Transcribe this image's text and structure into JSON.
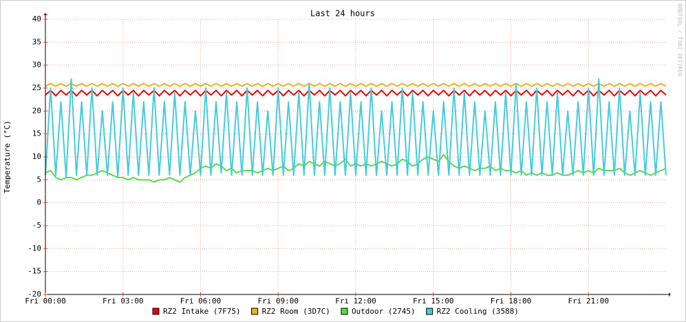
{
  "chart_data": {
    "type": "line",
    "title": "Last 24 hours",
    "y_label": "Temperature (°C)",
    "watermark": "RRDTOOL / TOBI OETIKER",
    "xlim": [
      0,
      24
    ],
    "xticks": [
      {
        "value": 0,
        "label": "Fri 00:00"
      },
      {
        "value": 3,
        "label": "Fri 03:00"
      },
      {
        "value": 6,
        "label": "Fri 06:00"
      },
      {
        "value": 9,
        "label": "Fri 09:00"
      },
      {
        "value": 12,
        "label": "Fri 12:00"
      },
      {
        "value": 15,
        "label": "Fri 15:00"
      },
      {
        "value": 18,
        "label": "Fri 18:00"
      },
      {
        "value": 21,
        "label": "Fri 21:00"
      }
    ],
    "ylim": [
      -20,
      40
    ],
    "yticks": [
      -20,
      -15,
      -10,
      -5,
      0,
      5,
      10,
      15,
      20,
      25,
      30,
      35,
      40
    ],
    "grid": true,
    "legend": "bottom",
    "x": [
      0,
      0.2,
      0.4,
      0.6,
      0.8,
      1,
      1.2,
      1.4,
      1.6,
      1.8,
      2,
      2.2,
      2.4,
      2.6,
      2.8,
      3,
      3.2,
      3.4,
      3.6,
      3.8,
      4,
      4.2,
      4.4,
      4.6,
      4.8,
      5,
      5.2,
      5.4,
      5.6,
      5.8,
      6,
      6.2,
      6.4,
      6.6,
      6.8,
      7,
      7.2,
      7.4,
      7.6,
      7.8,
      8,
      8.2,
      8.4,
      8.6,
      8.8,
      9,
      9.2,
      9.4,
      9.6,
      9.8,
      10,
      10.2,
      10.4,
      10.6,
      10.8,
      11,
      11.2,
      11.4,
      11.6,
      11.8,
      12,
      12.2,
      12.4,
      12.6,
      12.8,
      13,
      13.2,
      13.4,
      13.6,
      13.8,
      14,
      14.2,
      14.4,
      14.6,
      14.8,
      15,
      15.2,
      15.4,
      15.6,
      15.8,
      16,
      16.2,
      16.4,
      16.6,
      16.8,
      17,
      17.2,
      17.4,
      17.6,
      17.8,
      18,
      18.2,
      18.4,
      18.6,
      18.8,
      19,
      19.2,
      19.4,
      19.6,
      19.8,
      20,
      20.2,
      20.4,
      20.6,
      20.8,
      21,
      21.2,
      21.4,
      21.6,
      21.8,
      22,
      22.2,
      22.4,
      22.6,
      22.8,
      23,
      23.2,
      23.4,
      23.6,
      23.8,
      24
    ],
    "series": [
      {
        "name": "RZ2 Intake (7F75)",
        "color": "#ee0000",
        "values": [
          23.5,
          24.5,
          23.3,
          24.5,
          23.5,
          24.5,
          23.3,
          24.5,
          23.5,
          24.5,
          23.3,
          24.5,
          23.5,
          24.5,
          23.3,
          24.5,
          23.5,
          24.5,
          23.3,
          24.5,
          23.5,
          24.5,
          23.3,
          24.5,
          23.5,
          24.5,
          23.3,
          24.5,
          23.5,
          24.5,
          23.3,
          24.5,
          23.5,
          24.5,
          23.3,
          24.5,
          23.5,
          24.5,
          23.3,
          24.5,
          23.5,
          24.5,
          23.3,
          24.5,
          23.5,
          24.5,
          23.3,
          24.5,
          23.5,
          24.5,
          23.3,
          24.5,
          23.5,
          24.5,
          23.3,
          24.5,
          23.5,
          24.5,
          23.3,
          24.5,
          23.5,
          24.5,
          23.3,
          24.5,
          23.5,
          24.5,
          23.3,
          24.5,
          23.5,
          24.5,
          23.3,
          24.5,
          23.5,
          24.5,
          23.3,
          24.5,
          23.5,
          24.5,
          23.3,
          24.5,
          23.5,
          24.5,
          23.3,
          24.5,
          23.5,
          24.5,
          23.3,
          24.5,
          23.5,
          24.5,
          23.3,
          24.5,
          23.5,
          24.5,
          23.3,
          24.5,
          23.5,
          24.5,
          23.3,
          24.5,
          23.5,
          24.5,
          23.3,
          24.5,
          23.5,
          24.5,
          23.3,
          24.5,
          23.5,
          24.5,
          23.3,
          24.5,
          23.5,
          24.5,
          23.3,
          24.5,
          23.5,
          24.5,
          23.3,
          24.5,
          23.5
        ]
      },
      {
        "name": "RZ2 Room (3D7C)",
        "color": "#e8b320",
        "values": [
          25.4,
          26,
          25.4,
          26,
          25.4,
          26,
          25.4,
          26,
          25.4,
          26,
          25.4,
          26,
          25.4,
          26,
          25.4,
          26,
          25.4,
          26,
          25.4,
          26,
          25.4,
          26,
          25.4,
          26,
          25.4,
          26,
          25.4,
          26,
          25.4,
          26,
          25.4,
          26,
          25.4,
          26,
          25.4,
          26,
          25.4,
          26,
          25.4,
          26,
          25.4,
          26,
          25.4,
          26,
          25.4,
          26,
          25.4,
          26,
          25.4,
          26,
          25.4,
          26,
          25.4,
          26,
          25.4,
          26,
          25.4,
          26,
          25.4,
          26,
          25.4,
          26,
          25.4,
          26,
          25.4,
          26,
          25.4,
          26,
          25.4,
          26,
          25.4,
          26,
          25.4,
          26,
          25.4,
          26,
          25.4,
          26,
          25.4,
          26,
          25.4,
          26,
          25.4,
          26,
          25.4,
          26,
          25.4,
          26,
          25.4,
          26,
          25.4,
          26,
          25.4,
          26,
          25.4,
          26,
          25.4,
          26,
          25.4,
          26,
          25.4,
          26,
          25.4,
          26,
          25.4,
          26,
          25.4,
          26,
          25.4,
          26,
          25.4,
          26,
          25.4,
          26,
          25.4,
          26,
          25.4,
          26,
          25.4,
          26,
          25.4
        ]
      },
      {
        "name": "Outdoor (2745)",
        "color": "#55dd44",
        "values": [
          6.5,
          7,
          5.5,
          5,
          5.5,
          5.5,
          5,
          5.5,
          6,
          6,
          6.5,
          7,
          6.5,
          6,
          5.5,
          5.5,
          5,
          5.5,
          5,
          5,
          5,
          4.5,
          5,
          5,
          5.5,
          5,
          4.5,
          5.5,
          6,
          6.5,
          7.5,
          8,
          7.5,
          8.5,
          8,
          7,
          7.5,
          6.5,
          7,
          7,
          7,
          6.5,
          7,
          7.5,
          7,
          7.5,
          8,
          7,
          7.5,
          8.5,
          8,
          9,
          8.5,
          8,
          9,
          8.5,
          8,
          8.5,
          9.5,
          8,
          8.5,
          8,
          8.5,
          8,
          8.5,
          9,
          8.5,
          8,
          8.5,
          9.5,
          9,
          8,
          8.5,
          9.5,
          10,
          9.5,
          9,
          10.5,
          9,
          8,
          7.5,
          8,
          7.5,
          7,
          7.5,
          7.5,
          8,
          7,
          7.5,
          7,
          7,
          6.5,
          7,
          6,
          6.5,
          6,
          6.5,
          6,
          6,
          6.5,
          6,
          6,
          6.5,
          7,
          6.5,
          7,
          6.5,
          7.5,
          7,
          7,
          7,
          7.5,
          6.5,
          6,
          6.5,
          7,
          6.5,
          6,
          6.5,
          7,
          7.5
        ]
      },
      {
        "name": "RZ2 Cooling (3588)",
        "color": "#44ccdd",
        "values": [
          6,
          25,
          6,
          22,
          5.5,
          27,
          6,
          22,
          6,
          25,
          6,
          20,
          6,
          22,
          5.5,
          25,
          6,
          24,
          6,
          22,
          6,
          25,
          6,
          22,
          6,
          24,
          6,
          22,
          6,
          20,
          6,
          25,
          6,
          22,
          6.5,
          24,
          6,
          22,
          6,
          25,
          6,
          22,
          6,
          20,
          6,
          25,
          6,
          22,
          6,
          24,
          6,
          26,
          6,
          22,
          6,
          25,
          6,
          22,
          6,
          24,
          6,
          22,
          6,
          25,
          6,
          20,
          6,
          22,
          6,
          25,
          6,
          24,
          6,
          22,
          6,
          20,
          6,
          22,
          6,
          25,
          6,
          24,
          6,
          22,
          6,
          20,
          6,
          22,
          6,
          24,
          6,
          26,
          6,
          22,
          6,
          25,
          6,
          22,
          6,
          24,
          6,
          20,
          6,
          22,
          6,
          25,
          6,
          27,
          6,
          22,
          6,
          25,
          6,
          20,
          6,
          24,
          6,
          22,
          6,
          22,
          6
        ]
      }
    ]
  }
}
